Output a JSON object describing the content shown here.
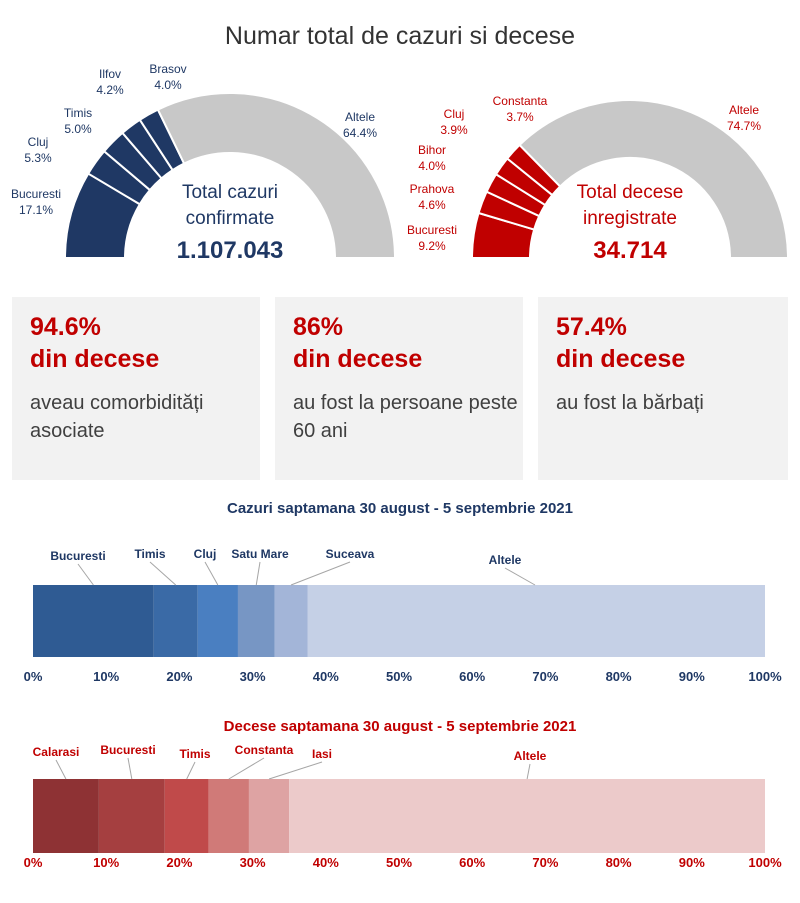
{
  "main_title": "Numar total de cazuri si decese",
  "colors": {
    "cases_dark": "#1f3864",
    "cases_mid": "#2e5597",
    "deaths_red": "#c00000",
    "gray": "#c8c8c8"
  },
  "stats": [
    {
      "pct": "94.6%",
      "din": "din decese",
      "desc": "aveau comorbidități asociate"
    },
    {
      "pct": "86%",
      "din": "din decese",
      "desc": "au fost la persoane peste 60 ani"
    },
    {
      "pct": "57.4%",
      "din": "din decese",
      "desc": "au fost la bărbați"
    }
  ],
  "chart_data": [
    {
      "type": "pie",
      "variant": "half-donut",
      "center_label": [
        "Total cazuri",
        "confirmate"
      ],
      "center_value": "1.107.043",
      "slices": [
        {
          "name": "Bucuresti",
          "pct_label": "17.1%",
          "value": 17.1
        },
        {
          "name": "Cluj",
          "pct_label": "5.3%",
          "value": 5.3
        },
        {
          "name": "Timis",
          "pct_label": "5.0%",
          "value": 5.0
        },
        {
          "name": "Ilfov",
          "pct_label": "4.2%",
          "value": 4.2
        },
        {
          "name": "Brasov",
          "pct_label": "4.0%",
          "value": 4.0
        },
        {
          "name": "Altele",
          "pct_label": "64.4%",
          "value": 64.4
        }
      ]
    },
    {
      "type": "pie",
      "variant": "half-donut",
      "center_label": [
        "Total decese",
        "inregistrate"
      ],
      "center_value": "34.714",
      "slices": [
        {
          "name": "Bucuresti",
          "pct_label": "9.2%",
          "value": 9.2
        },
        {
          "name": "Prahova",
          "pct_label": "4.6%",
          "value": 4.6
        },
        {
          "name": "Bihor",
          "pct_label": "4.0%",
          "value": 4.0
        },
        {
          "name": "Cluj",
          "pct_label": "3.9%",
          "value": 3.9
        },
        {
          "name": "Constanta",
          "pct_label": "3.7%",
          "value": 3.7
        },
        {
          "name": "Altele",
          "pct_label": "74.7%",
          "value": 74.7
        }
      ]
    },
    {
      "type": "bar",
      "variant": "stacked-100",
      "title": "Cazuri saptamana 30 august - 5 septembrie 2021",
      "xlim": [
        0,
        100
      ],
      "ticks": [
        "0%",
        "10%",
        "20%",
        "30%",
        "40%",
        "50%",
        "60%",
        "70%",
        "80%",
        "90%",
        "100%"
      ],
      "segments": [
        {
          "name": "Bucuresti",
          "value": 16.5
        },
        {
          "name": "Timis",
          "value": 6.0
        },
        {
          "name": "Cluj",
          "value": 5.5
        },
        {
          "name": "Satu Mare",
          "value": 5.0
        },
        {
          "name": "Suceava",
          "value": 4.5
        },
        {
          "name": "Altele",
          "value": 62.5
        }
      ]
    },
    {
      "type": "bar",
      "variant": "stacked-100",
      "title": "Decese saptamana 30 august - 5 septembrie 2021",
      "xlim": [
        0,
        100
      ],
      "ticks": [
        "0%",
        "10%",
        "20%",
        "30%",
        "40%",
        "50%",
        "60%",
        "70%",
        "80%",
        "90%",
        "100%"
      ],
      "segments": [
        {
          "name": "Calarasi",
          "value": 9.0
        },
        {
          "name": "Bucuresti",
          "value": 9.0
        },
        {
          "name": "Timis",
          "value": 6.0
        },
        {
          "name": "Constanta",
          "value": 5.5
        },
        {
          "name": "Iasi",
          "value": 5.5
        },
        {
          "name": "Altele",
          "value": 65.0
        }
      ]
    }
  ]
}
